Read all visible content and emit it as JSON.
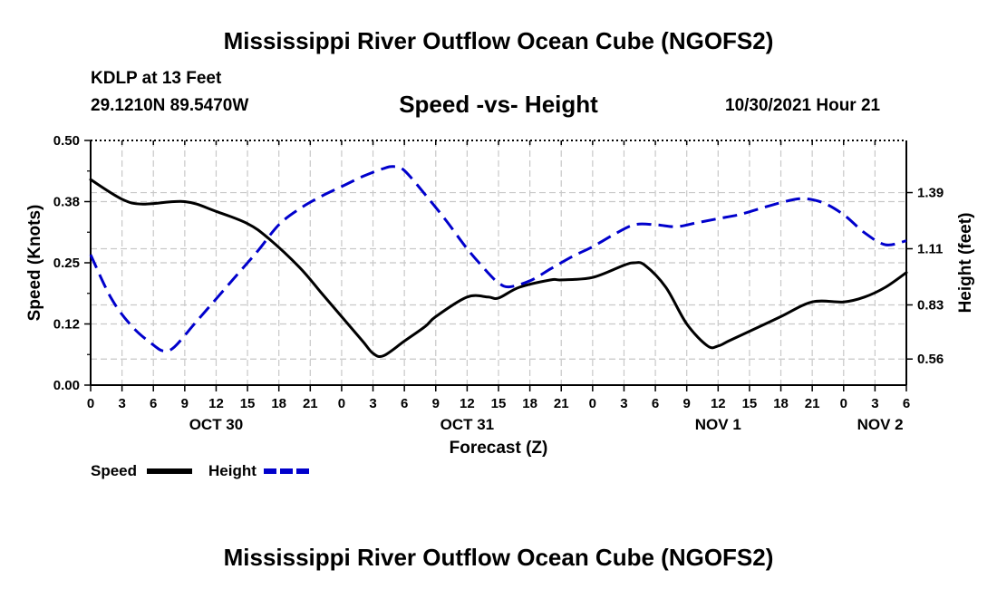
{
  "header": {
    "title": "Mississippi River Outflow Ocean Cube (NGOFS2)",
    "station": "KDLP at 13 Feet",
    "coords": "29.1210N  89.5470W",
    "subtitle": "Speed -vs- Height",
    "datetime": "10/30/2021 Hour 21",
    "bottom_title": "Mississippi River Outflow Ocean Cube (NGOFS2)"
  },
  "chart_data": {
    "type": "line",
    "title": "Speed -vs- Height",
    "xlabel": "Forecast (Z)",
    "ylabel": "Speed (Knots)",
    "y2label": "Height (feet)",
    "x_unit": "hours since Oct 30 00Z",
    "xlim": [
      0,
      78
    ],
    "ylim": [
      0,
      0.5
    ],
    "y2lim": [
      0.43,
      1.65
    ],
    "x_ticks": [
      0,
      3,
      6,
      9,
      12,
      15,
      18,
      21,
      24,
      27,
      30,
      33,
      36,
      39,
      42,
      45,
      48,
      51,
      54,
      57,
      60,
      63,
      66,
      69,
      72,
      75,
      78
    ],
    "x_tick_labels": [
      "0",
      "3",
      "6",
      "9",
      "12",
      "15",
      "18",
      "21",
      "0",
      "3",
      "6",
      "9",
      "12",
      "15",
      "18",
      "21",
      "0",
      "3",
      "6",
      "9",
      "12",
      "15",
      "18",
      "21",
      "0",
      "3",
      "6"
    ],
    "date_labels": [
      {
        "x": 12,
        "label": "OCT 30"
      },
      {
        "x": 36,
        "label": "OCT 31"
      },
      {
        "x": 60,
        "label": "NOV 1"
      },
      {
        "x": 75.5,
        "label": "NOV 2"
      }
    ],
    "y_ticks": [
      0,
      0.125,
      0.25,
      0.375,
      0.5
    ],
    "y_tick_labels": [
      "0.00",
      "0.12",
      "0.25",
      "0.38",
      "0.50"
    ],
    "y2_ticks": [
      0.56,
      0.83,
      1.11,
      1.39
    ],
    "y2_tick_labels": [
      "0.56",
      "0.83",
      "1.11",
      "1.39"
    ],
    "grid": true,
    "series": [
      {
        "name": "Speed",
        "axis": "left",
        "color": "#000000",
        "dash": "solid",
        "x": [
          0,
          3,
          5,
          9,
          12,
          15,
          17,
          20,
          22,
          24,
          26,
          27,
          28,
          30,
          32,
          33,
          36,
          38,
          39,
          41,
          44,
          45,
          48,
          51,
          52,
          53,
          55,
          57,
          59,
          60,
          61,
          63,
          66,
          69,
          72,
          74,
          76,
          78
        ],
        "values": [
          0.42,
          0.38,
          0.37,
          0.375,
          0.355,
          0.33,
          0.3,
          0.24,
          0.19,
          0.14,
          0.09,
          0.065,
          0.06,
          0.09,
          0.12,
          0.14,
          0.18,
          0.18,
          0.178,
          0.2,
          0.215,
          0.215,
          0.22,
          0.245,
          0.25,
          0.245,
          0.2,
          0.125,
          0.08,
          0.08,
          0.09,
          0.11,
          0.14,
          0.17,
          0.17,
          0.18,
          0.2,
          0.23
        ]
      },
      {
        "name": "Height",
        "axis": "right",
        "color": "#0000cc",
        "dash": "dashed",
        "x": [
          0,
          2,
          4,
          6,
          7,
          8,
          10,
          12,
          14,
          16,
          18,
          20,
          22,
          24,
          26,
          28,
          29,
          30,
          32,
          34,
          36,
          38,
          39,
          40,
          42,
          44,
          46,
          48,
          50,
          52,
          54,
          56,
          58,
          60,
          62,
          64,
          66,
          68,
          70,
          72,
          74,
          76,
          78
        ],
        "values": [
          1.08,
          0.86,
          0.72,
          0.63,
          0.6,
          0.62,
          0.74,
          0.86,
          0.98,
          1.1,
          1.23,
          1.31,
          1.37,
          1.42,
          1.47,
          1.51,
          1.52,
          1.5,
          1.38,
          1.25,
          1.11,
          0.99,
          0.94,
          0.92,
          0.95,
          1.01,
          1.07,
          1.12,
          1.18,
          1.23,
          1.23,
          1.22,
          1.24,
          1.26,
          1.28,
          1.31,
          1.34,
          1.36,
          1.34,
          1.28,
          1.19,
          1.13,
          1.15
        ]
      }
    ]
  },
  "legend": {
    "speed_label": "Speed",
    "height_label": "Height"
  }
}
